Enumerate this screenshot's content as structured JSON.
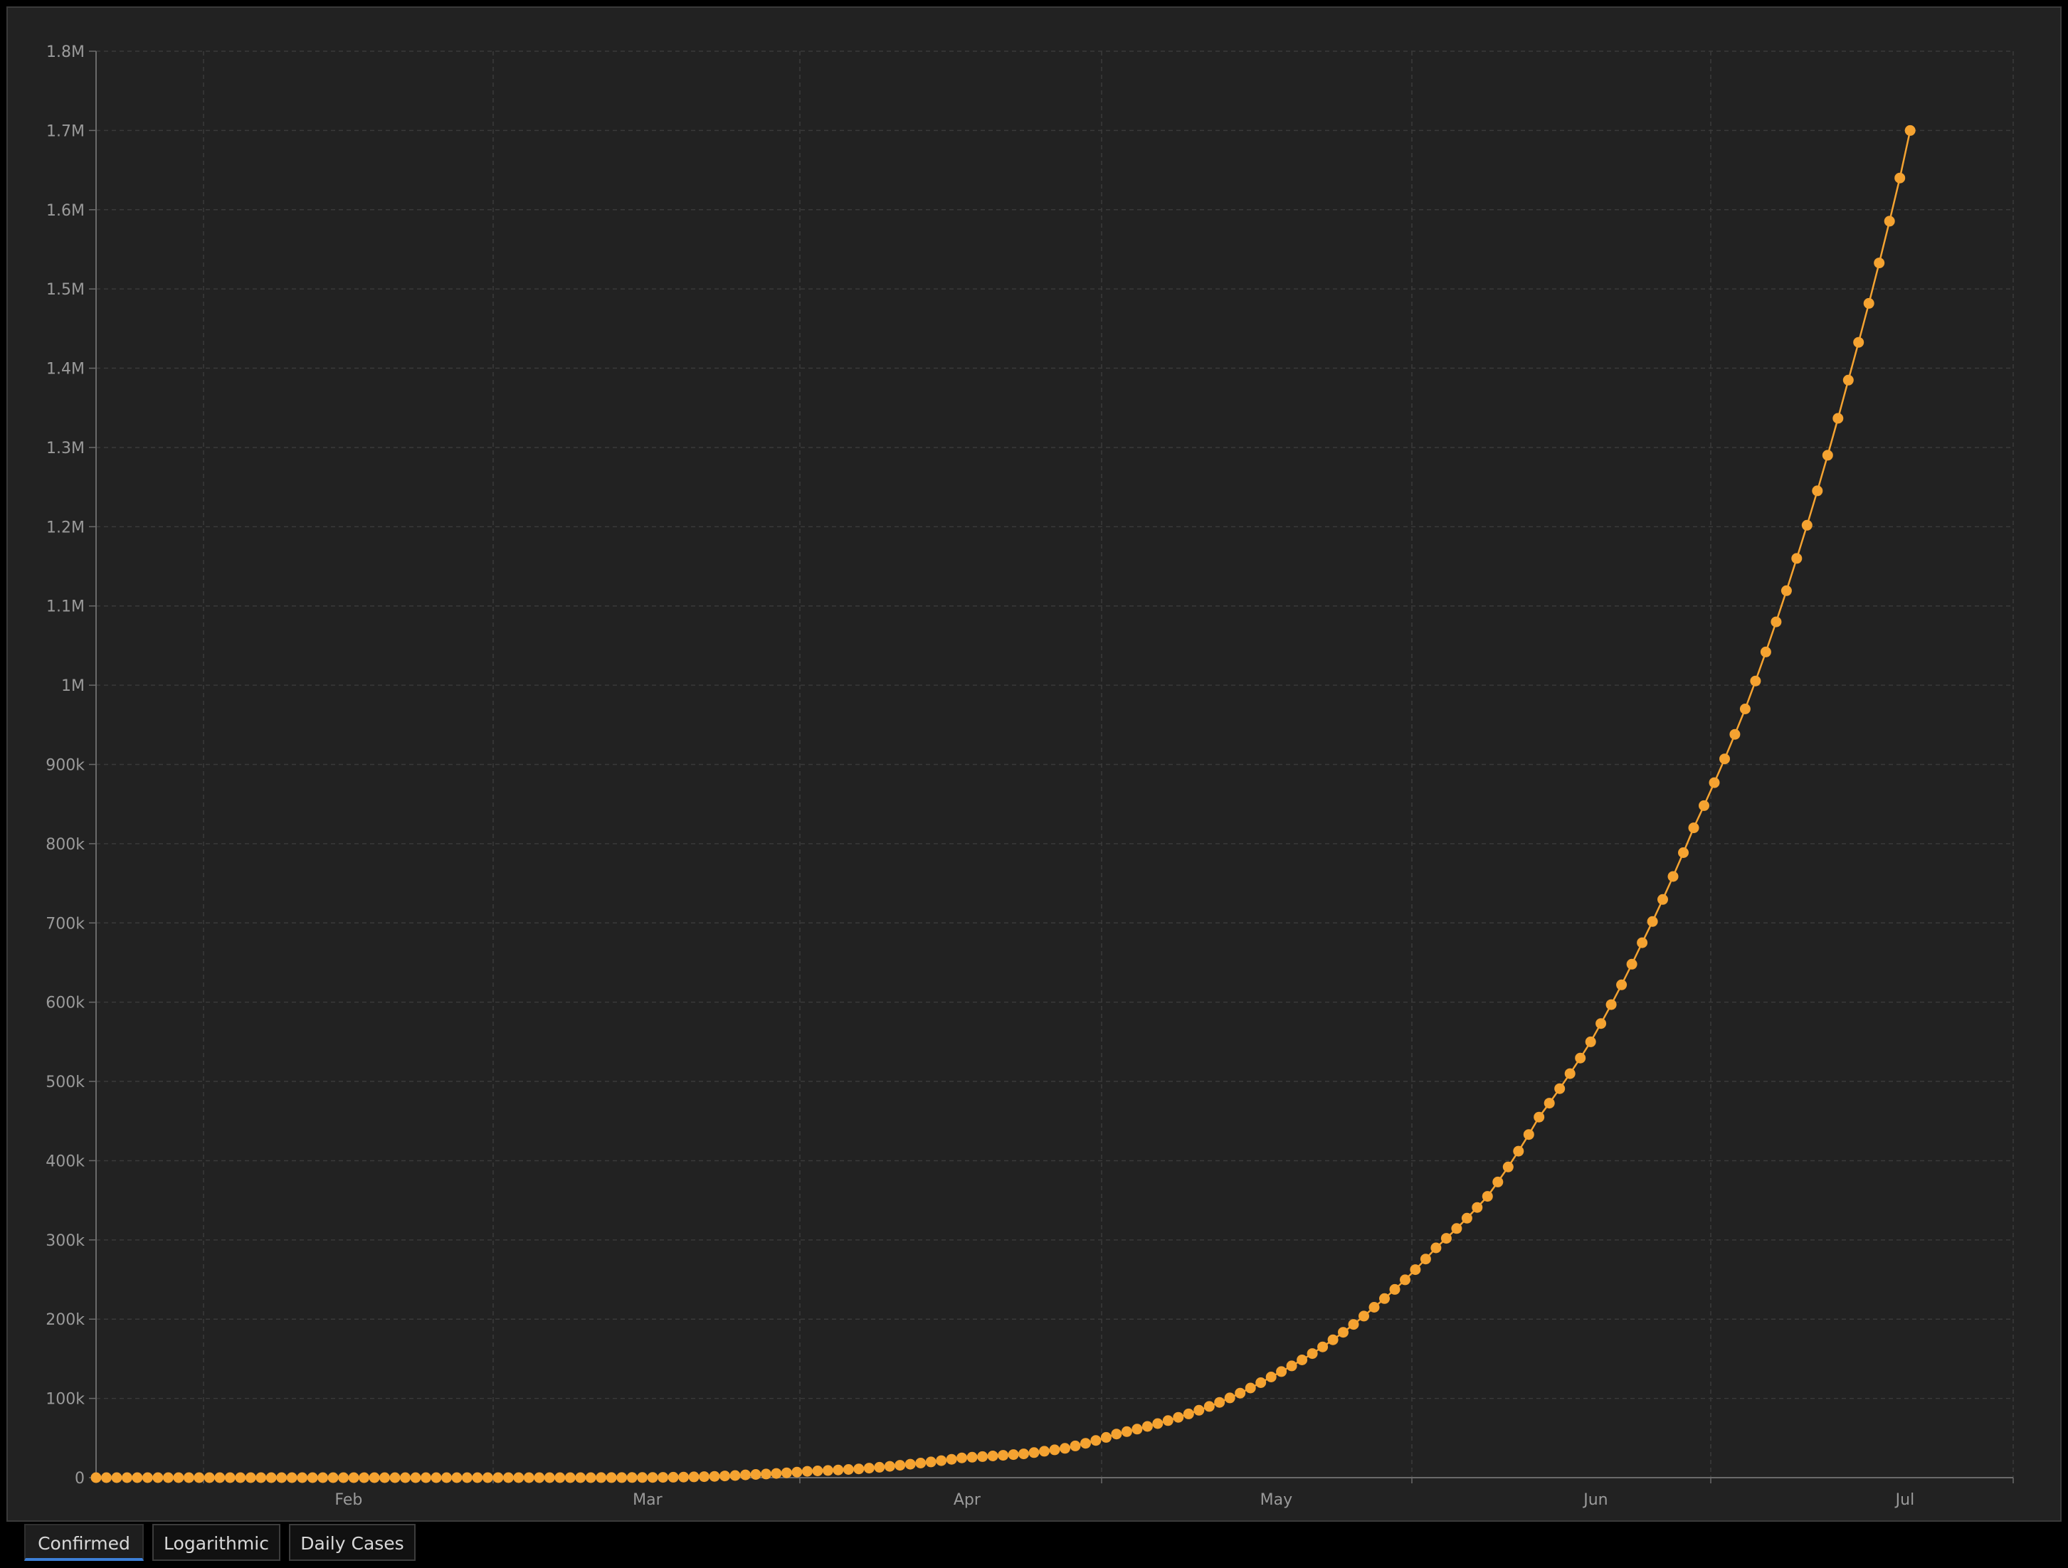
{
  "tabs": [
    {
      "label": "Confirmed",
      "active": true
    },
    {
      "label": "Logarithmic",
      "active": false
    },
    {
      "label": "Daily Cases",
      "active": false
    }
  ],
  "colors": {
    "series": "#f5a331",
    "accent": "#3d7fd6",
    "background": "#222222"
  },
  "chart_data": {
    "type": "line",
    "markers": true,
    "grid": true,
    "title": "",
    "xlabel": "",
    "ylabel": "",
    "x_start": "2020-01-22",
    "x_end": "2020-07-26",
    "x_tick_labels": [
      {
        "date": "2020-02-01",
        "label": "Feb"
      },
      {
        "date": "2020-03-01",
        "label": "Mar"
      },
      {
        "date": "2020-04-01",
        "label": "Apr"
      },
      {
        "date": "2020-05-01",
        "label": "May"
      },
      {
        "date": "2020-06-01",
        "label": "Jun"
      },
      {
        "date": "2020-07-01",
        "label": "Jul"
      }
    ],
    "y_ticks": [
      {
        "value": 0,
        "label": "0"
      },
      {
        "value": 100000,
        "label": "100k"
      },
      {
        "value": 200000,
        "label": "200k"
      },
      {
        "value": 300000,
        "label": "300k"
      },
      {
        "value": 400000,
        "label": "400k"
      },
      {
        "value": 500000,
        "label": "500k"
      },
      {
        "value": 600000,
        "label": "600k"
      },
      {
        "value": 700000,
        "label": "700k"
      },
      {
        "value": 800000,
        "label": "800k"
      },
      {
        "value": 900000,
        "label": "900k"
      },
      {
        "value": 1000000,
        "label": "1M"
      },
      {
        "value": 1100000,
        "label": "1.1M"
      },
      {
        "value": 1200000,
        "label": "1.2M"
      },
      {
        "value": 1300000,
        "label": "1.3M"
      },
      {
        "value": 1400000,
        "label": "1.4M"
      },
      {
        "value": 1500000,
        "label": "1.5M"
      },
      {
        "value": 1600000,
        "label": "1.6M"
      },
      {
        "value": 1700000,
        "label": "1.7M"
      },
      {
        "value": 1800000,
        "label": "1.8M"
      }
    ],
    "ylim": [
      0,
      1800000
    ],
    "series": [
      {
        "color": "#f5a331",
        "points": [
          {
            "x": "2020-01-22",
            "y": 0
          },
          {
            "x": "2020-03-01",
            "y": 2
          },
          {
            "x": "2020-03-15",
            "y": 200
          },
          {
            "x": "2020-03-20",
            "y": 1000
          },
          {
            "x": "2020-03-25",
            "y": 3500
          },
          {
            "x": "2020-03-31",
            "y": 8000
          },
          {
            "x": "2020-04-05",
            "y": 11000
          },
          {
            "x": "2020-04-10",
            "y": 17000
          },
          {
            "x": "2020-04-15",
            "y": 25000
          },
          {
            "x": "2020-04-21",
            "y": 30000
          },
          {
            "x": "2020-04-25",
            "y": 37000
          },
          {
            "x": "2020-04-30",
            "y": 55000
          },
          {
            "x": "2020-05-05",
            "y": 72000
          },
          {
            "x": "2020-05-10",
            "y": 95000
          },
          {
            "x": "2020-05-15",
            "y": 127000
          },
          {
            "x": "2020-05-20",
            "y": 165000
          },
          {
            "x": "2020-05-25",
            "y": 215000
          },
          {
            "x": "2020-05-31",
            "y": 290000
          },
          {
            "x": "2020-06-05",
            "y": 355000
          },
          {
            "x": "2020-06-10",
            "y": 455000
          },
          {
            "x": "2020-06-15",
            "y": 550000
          },
          {
            "x": "2020-06-20",
            "y": 675000
          },
          {
            "x": "2020-06-25",
            "y": 820000
          },
          {
            "x": "2020-06-30",
            "y": 970000
          },
          {
            "x": "2020-07-05",
            "y": 1160000
          },
          {
            "x": "2020-07-10",
            "y": 1385000
          },
          {
            "x": "2020-07-15",
            "y": 1640000
          },
          {
            "x": "2020-07-16",
            "y": 1700000
          }
        ]
      }
    ]
  }
}
